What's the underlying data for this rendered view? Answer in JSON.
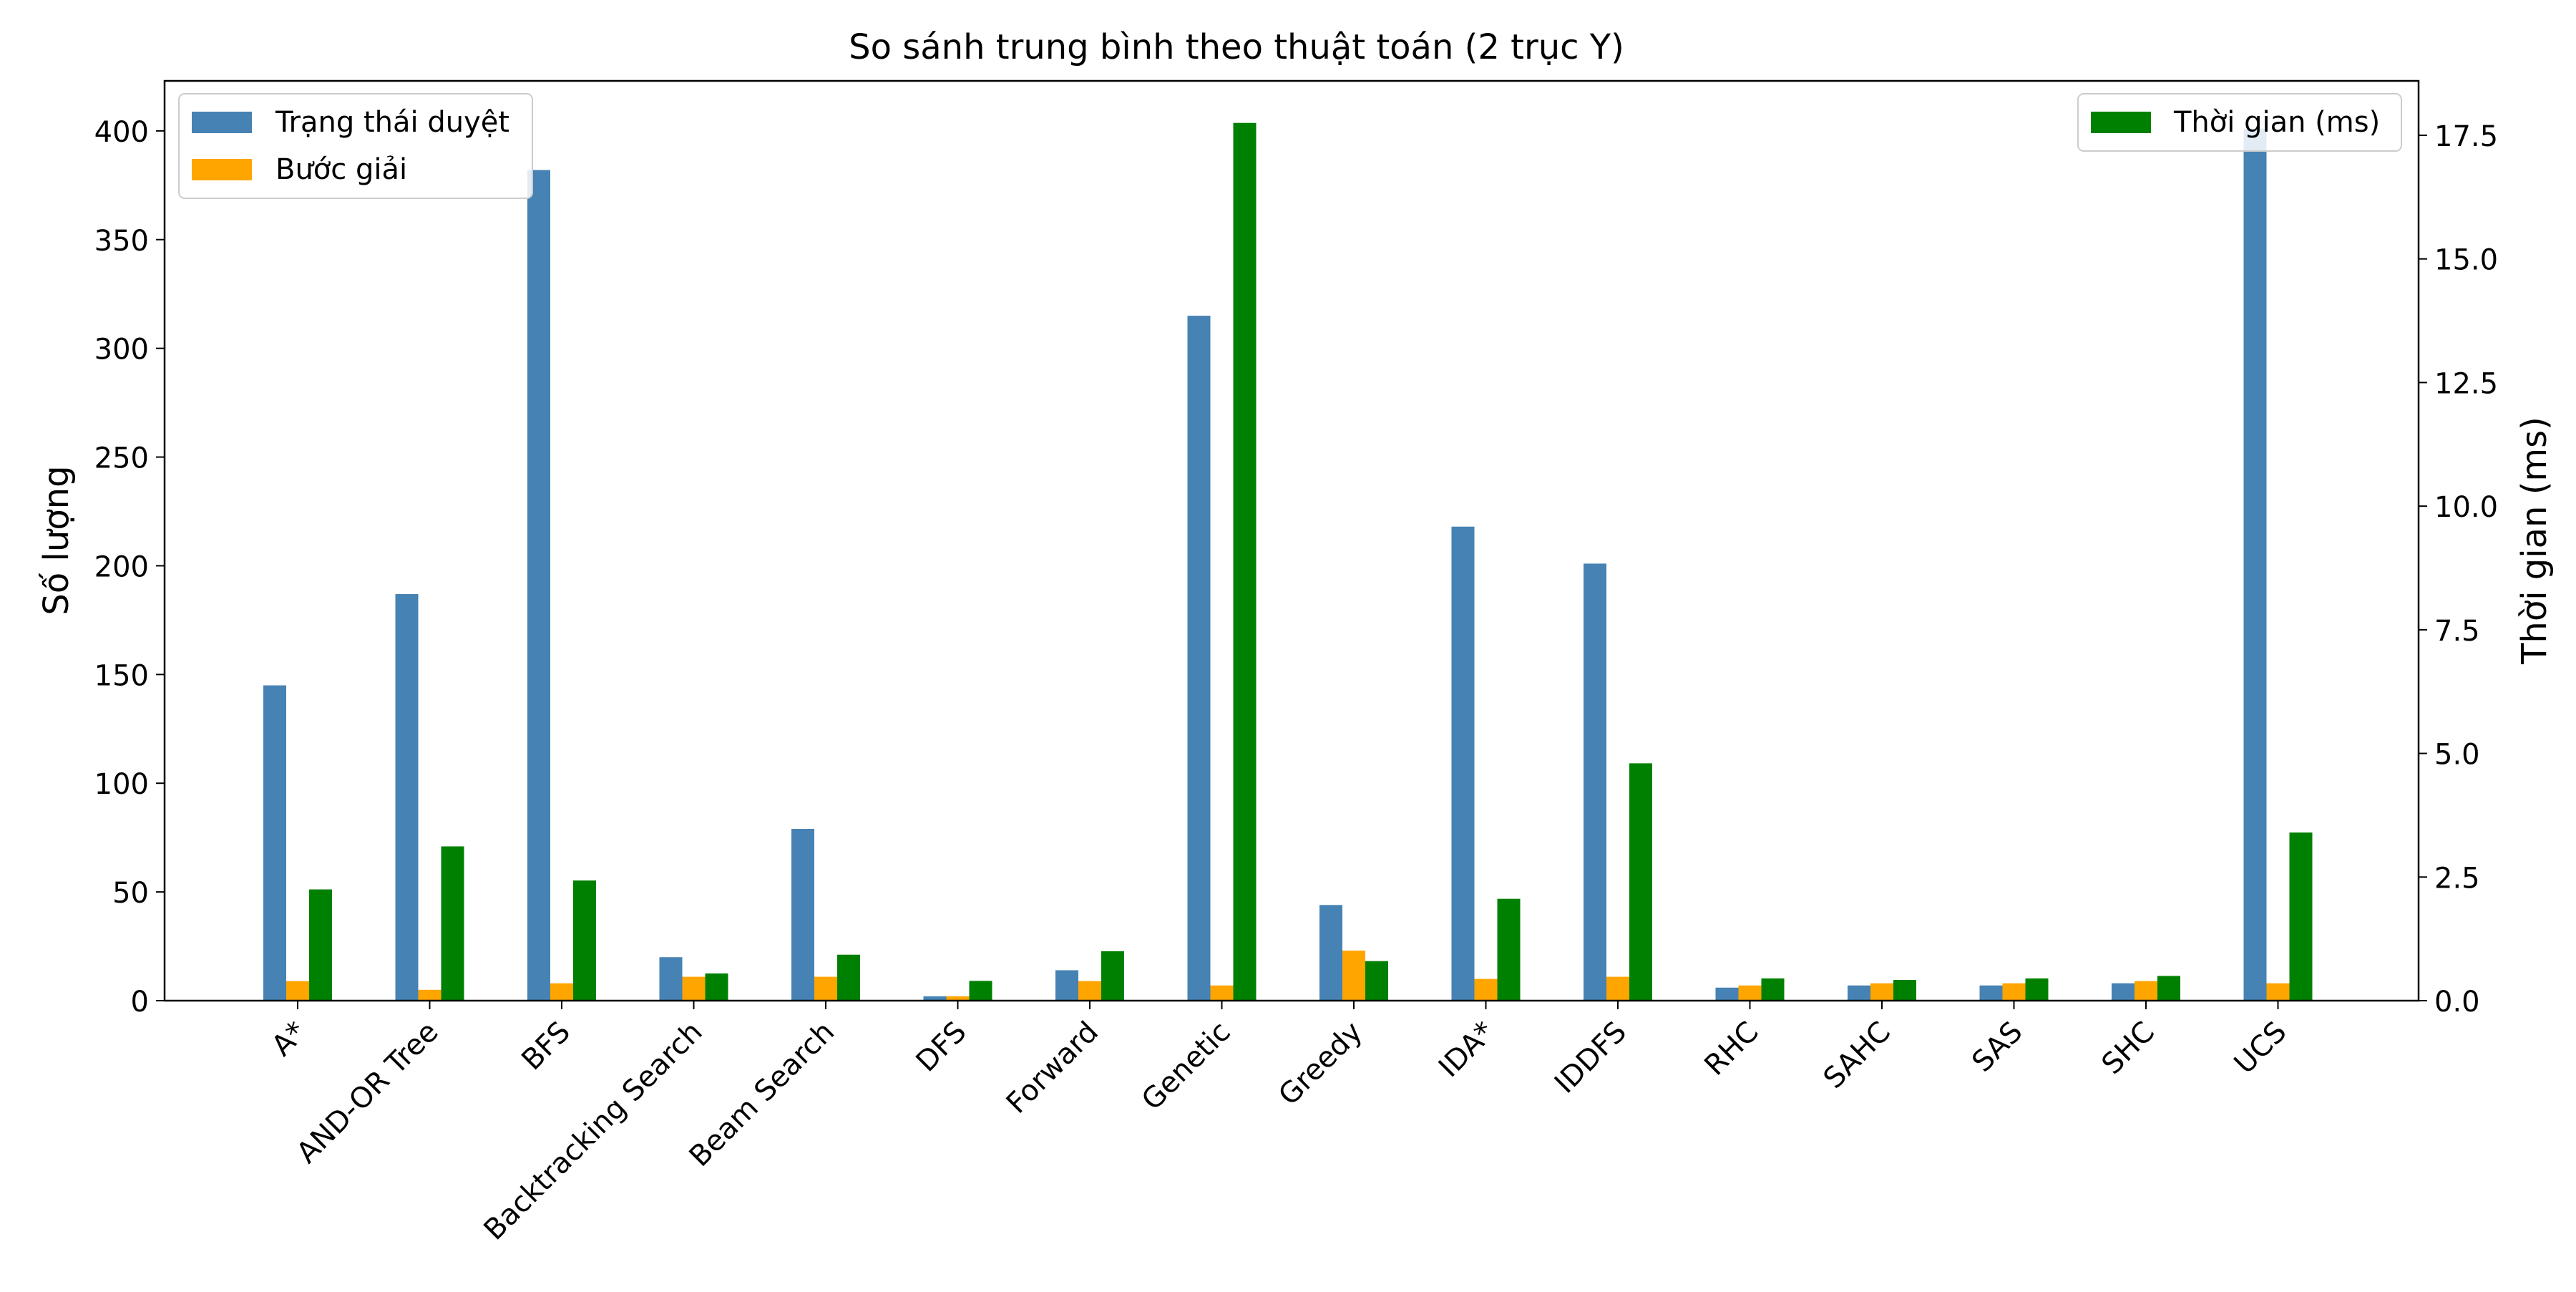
{
  "chart_data": {
    "type": "bar",
    "title": "So sánh trung bình theo thuật toán (2 trục Y)",
    "ylabel": "Số lượng",
    "y2label": "Thời gian (ms)",
    "categories": [
      "A*",
      "AND-OR Tree",
      "BFS",
      "Backtracking Search",
      "Beam Search",
      "DFS",
      "Forward",
      "Genetic",
      "Greedy",
      "IDA*",
      "IDDFS",
      "RHC",
      "SAHC",
      "SAS",
      "SHC",
      "UCS"
    ],
    "ylim": [
      0,
      423
    ],
    "y2lim": [
      0,
      18.6
    ],
    "yticks": [
      0,
      50,
      100,
      150,
      200,
      250,
      300,
      350,
      400
    ],
    "y2ticks": [
      0,
      2.5,
      5,
      7.5,
      10,
      12.5,
      15,
      17.5
    ],
    "y2tick_labels": [
      "0.0",
      "2.5",
      "5.0",
      "7.5",
      "10.0",
      "12.5",
      "15.0",
      "17.5"
    ],
    "series": [
      {
        "name": "Trạng thái duyệt",
        "axis": "left",
        "color": "#4682b4",
        "values": [
          145,
          187,
          382,
          20,
          79,
          2,
          14,
          315,
          44,
          218,
          201,
          6,
          7,
          7,
          8,
          401
        ]
      },
      {
        "name": "Bước giải",
        "axis": "left",
        "color": "#ffa500",
        "values": [
          9,
          5,
          8,
          11,
          11,
          2,
          9,
          7,
          23,
          10,
          11,
          7,
          8,
          8,
          9,
          8
        ]
      },
      {
        "name": "Thời gian (ms)",
        "axis": "right",
        "color": "#008000",
        "values": [
          2.25,
          3.12,
          2.43,
          0.55,
          0.93,
          0.4,
          1.0,
          17.75,
          0.8,
          2.06,
          4.8,
          0.45,
          0.42,
          0.45,
          0.5,
          3.4
        ]
      }
    ],
    "legend_left": "top-left",
    "legend_right": "top-right",
    "grid": false
  }
}
